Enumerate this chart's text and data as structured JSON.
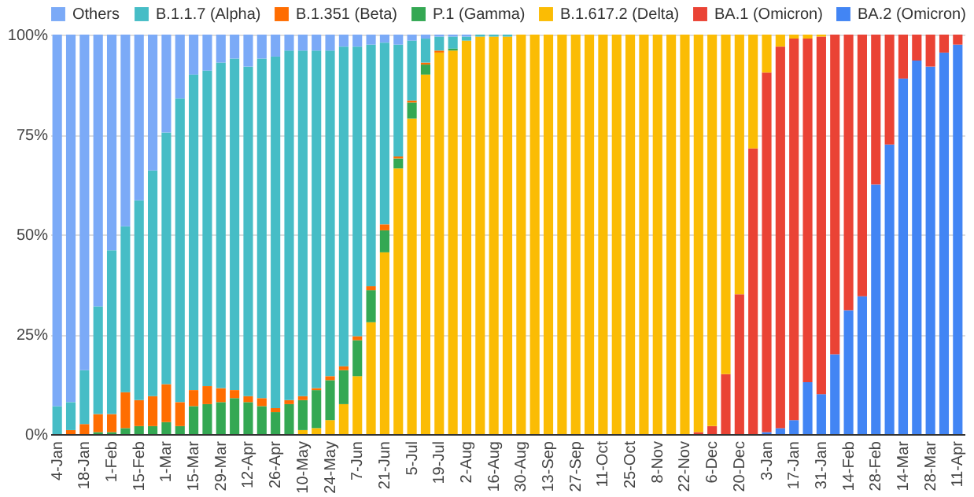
{
  "chart_data": {
    "type": "bar",
    "stacked": true,
    "legend": "top",
    "grid": "y",
    "categories": [
      "4-Jan",
      null,
      "18-Jan",
      null,
      "1-Feb",
      null,
      "15-Feb",
      null,
      "1-Mar",
      null,
      "15-Mar",
      null,
      "29-Mar",
      null,
      "12-Apr",
      null,
      "26-Apr",
      null,
      "10-May",
      null,
      "24-May",
      null,
      "7-Jun",
      null,
      "21-Jun",
      null,
      "5-Jul",
      null,
      "19-Jul",
      null,
      "2-Aug",
      null,
      "16-Aug",
      null,
      "30-Aug",
      null,
      "13-Sep",
      null,
      "27-Sep",
      null,
      "11-Oct",
      null,
      "25-Oct",
      null,
      "8-Nov",
      null,
      "22-Nov",
      null,
      "6-Dec",
      null,
      "20-Dec",
      null,
      "3-Jan",
      null,
      "17-Jan",
      null,
      "31-Jan",
      null,
      "14-Feb",
      null,
      "28-Feb",
      null,
      "14-Mar",
      null,
      "28-Mar",
      null,
      "11-Apr"
    ],
    "ylim": [
      0,
      100
    ],
    "yticks": [
      {
        "value": 0,
        "label": "0%"
      },
      {
        "value": 25,
        "label": "25%"
      },
      {
        "value": 50,
        "label": "50%"
      },
      {
        "value": 75,
        "label": "75%"
      },
      {
        "value": 100,
        "label": "100%"
      }
    ],
    "series": [
      {
        "name": "BA.2 (Omicron)",
        "color": "#4285f4",
        "values": [
          null,
          null,
          null,
          null,
          null,
          null,
          null,
          null,
          null,
          null,
          null,
          null,
          null,
          null,
          null,
          null,
          null,
          null,
          null,
          null,
          null,
          null,
          null,
          null,
          null,
          null,
          null,
          null,
          null,
          null,
          null,
          null,
          null,
          null,
          null,
          null,
          null,
          null,
          null,
          null,
          null,
          null,
          null,
          null,
          null,
          null,
          null,
          null,
          null,
          null,
          null,
          null,
          0.5,
          1.5,
          3.5,
          13,
          10,
          20,
          31,
          34.5,
          62.5,
          72.5,
          89,
          93.5,
          92,
          95.5,
          97.5
        ]
      },
      {
        "name": "BA.1 (Omicron)",
        "color": "#ea4335",
        "values": [
          null,
          null,
          null,
          null,
          null,
          null,
          null,
          null,
          null,
          null,
          null,
          null,
          null,
          null,
          null,
          null,
          null,
          null,
          null,
          null,
          null,
          null,
          null,
          null,
          null,
          null,
          null,
          null,
          null,
          null,
          null,
          null,
          null,
          null,
          null,
          null,
          null,
          null,
          null,
          null,
          null,
          null,
          null,
          null,
          null,
          null,
          null,
          0.5,
          2,
          15,
          35,
          71.5,
          90,
          95.5,
          95.5,
          86,
          89.5,
          80,
          69,
          65.5,
          37.5,
          27.5,
          11,
          6.5,
          8,
          4.5,
          2.5
        ]
      },
      {
        "name": "B.1.617.2 (Delta)",
        "color": "#fbbc04",
        "values": [
          null,
          null,
          null,
          null,
          null,
          null,
          null,
          null,
          null,
          null,
          null,
          null,
          null,
          null,
          null,
          null,
          null,
          null,
          1,
          1.5,
          3.5,
          7.5,
          14.5,
          28,
          45.5,
          66.5,
          79,
          90,
          95.5,
          96,
          98.5,
          99.5,
          99.5,
          99.5,
          100,
          100,
          100,
          100,
          100,
          100,
          100,
          100,
          100,
          100,
          100,
          100,
          100,
          99.5,
          98,
          85,
          65,
          28.5,
          9.5,
          3,
          1,
          1,
          0.5,
          null,
          null,
          null,
          null,
          null,
          null,
          null,
          null,
          null,
          null
        ]
      },
      {
        "name": "P.1 (Gamma)",
        "color": "#34a853",
        "values": [
          null,
          null,
          null,
          0.5,
          0.5,
          1.5,
          2,
          2,
          3,
          2,
          7,
          7.5,
          8,
          9,
          8,
          7,
          5.5,
          7.5,
          7.5,
          9.5,
          10,
          8.5,
          9,
          8,
          5.5,
          2.5,
          4,
          2.5,
          null,
          0.5,
          null,
          null,
          null,
          null,
          null,
          null,
          null,
          null,
          null,
          null,
          null,
          null,
          null,
          null,
          null,
          null,
          null,
          null,
          null,
          null,
          null,
          null,
          null,
          null,
          null,
          null,
          null,
          null,
          null,
          null,
          null,
          null,
          null,
          null,
          null,
          null,
          null
        ]
      },
      {
        "name": "B.1.351 (Beta)",
        "color": "#ff6d01",
        "values": [
          null,
          1,
          2.5,
          4.5,
          4.5,
          9,
          6.5,
          7.5,
          9.5,
          6,
          4,
          4.5,
          3.5,
          2,
          1.5,
          2,
          1,
          1,
          1,
          0.5,
          1,
          1,
          1,
          1,
          1.5,
          0.5,
          0.5,
          0.5,
          0.5,
          null,
          null,
          null,
          null,
          null,
          null,
          null,
          null,
          null,
          null,
          null,
          null,
          null,
          null,
          null,
          null,
          null,
          null,
          null,
          null,
          null,
          null,
          null,
          null,
          null,
          null,
          null,
          null,
          null,
          null,
          null,
          null,
          null,
          null,
          null,
          null,
          null,
          null
        ]
      },
      {
        "name": "B.1.1.7 (Alpha)",
        "color": "#46bdc6",
        "values": [
          7,
          7,
          13.5,
          27,
          41,
          41.5,
          50,
          56.5,
          63,
          76,
          79,
          79,
          81.5,
          83,
          82.5,
          85,
          88,
          87.5,
          86.5,
          84.5,
          81.5,
          80,
          72.5,
          60.5,
          45.5,
          28,
          15,
          6,
          3.5,
          3,
          1,
          0.5,
          0.5,
          0.5,
          null,
          null,
          null,
          null,
          null,
          null,
          null,
          null,
          null,
          null,
          null,
          null,
          null,
          null,
          null,
          null,
          null,
          null,
          null,
          null,
          null,
          null,
          null,
          null,
          null,
          null,
          null,
          null,
          null,
          null,
          null,
          null,
          null
        ]
      },
      {
        "name": "Others",
        "color": "#7baaf7",
        "values": [
          93,
          92,
          84,
          68,
          54,
          48,
          41.5,
          34,
          24.5,
          16,
          10,
          9,
          7,
          6,
          8,
          6,
          5.5,
          4,
          4,
          4,
          4,
          3,
          3,
          2.5,
          2,
          2.5,
          1.5,
          1,
          0.5,
          0.5,
          0.5,
          null,
          null,
          null,
          null,
          null,
          null,
          null,
          null,
          null,
          null,
          null,
          null,
          null,
          null,
          null,
          null,
          null,
          null,
          null,
          null,
          null,
          null,
          null,
          null,
          null,
          null,
          null,
          null,
          null,
          null,
          null,
          null,
          null,
          null,
          null,
          null
        ]
      }
    ]
  }
}
